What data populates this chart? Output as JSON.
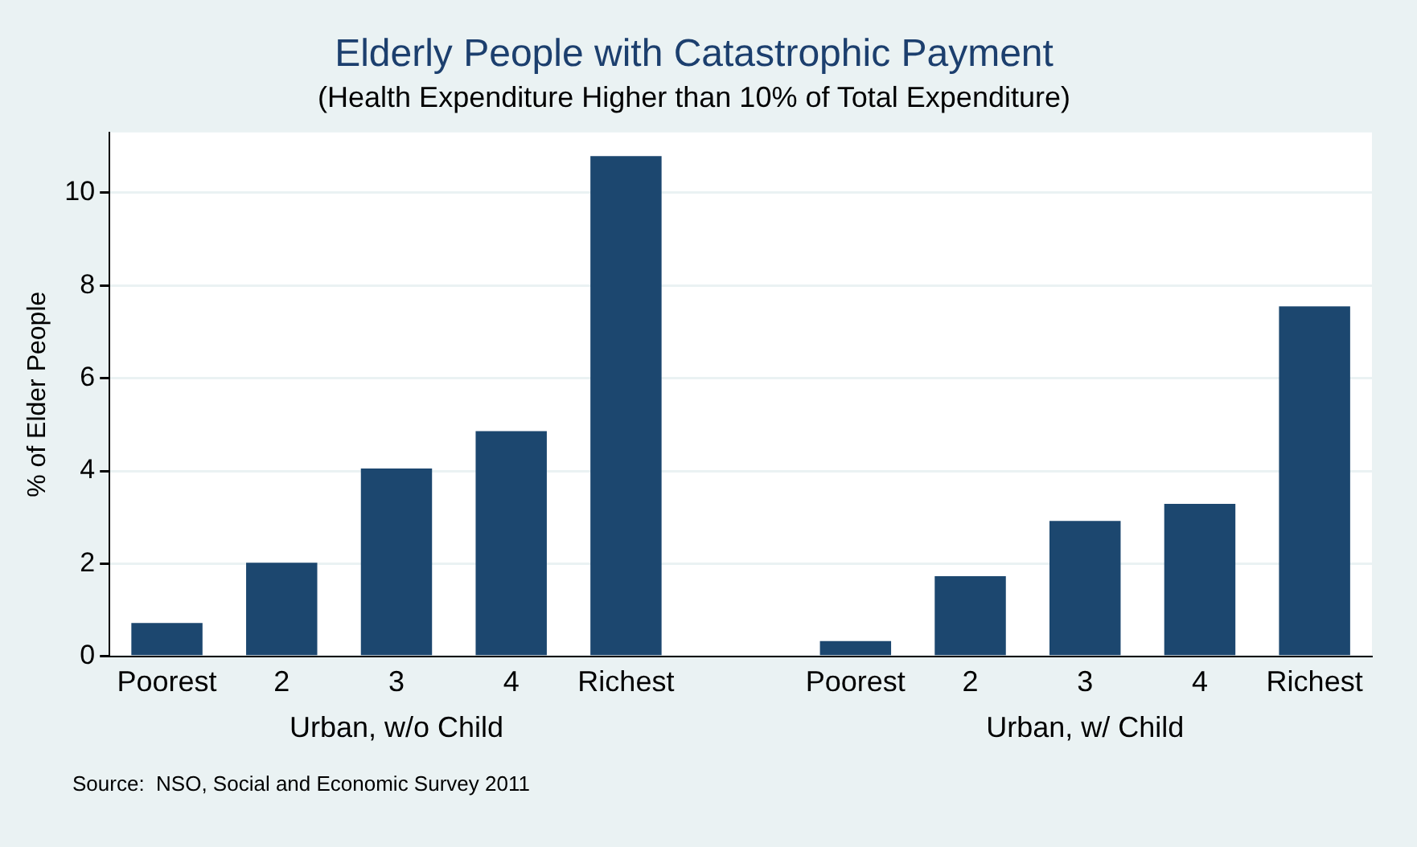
{
  "chart_data": {
    "type": "bar",
    "title": "Elderly People with Catastrophic Payment",
    "subtitle": "(Health Expenditure Higher than 10% of Total Expenditure)",
    "ylabel": "% of Elder People",
    "categories": [
      "Poorest",
      "2",
      "3",
      "4",
      "Richest",
      null,
      "Poorest",
      "2",
      "3",
      "4",
      "Richest"
    ],
    "values": [
      0.72,
      2.02,
      4.05,
      4.86,
      10.79,
      null,
      0.33,
      1.73,
      2.92,
      3.29,
      7.55
    ],
    "color": "#1c476f",
    "ylim": [
      0,
      11.3
    ],
    "yticks": [
      0,
      2,
      4,
      6,
      8,
      10
    ],
    "grid": "y",
    "legend": false,
    "annotations": [
      "Urban, w/o Child",
      "Urban, w/ Child",
      "Source:  NSO, Social and Economic Survey 2011"
    ]
  }
}
